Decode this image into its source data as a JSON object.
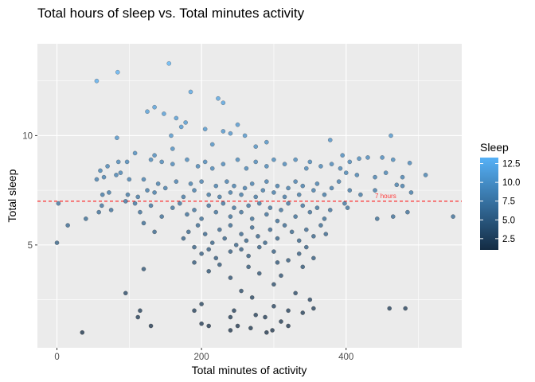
{
  "chart_data": {
    "type": "scatter",
    "title": "Total hours of sleep vs. Total minutes activity",
    "xlabel": "Total minutes of activity",
    "ylabel": "Total sleep",
    "xlim": [
      -27,
      560
    ],
    "ylim": [
      0.3,
      14.2
    ],
    "x_ticks": [
      0,
      200,
      400
    ],
    "y_ticks": [
      5,
      10
    ],
    "grid": true,
    "panel_color": "#ebebeb",
    "reference_line": {
      "y": 7,
      "label": "7 hours",
      "color": "#ff0000",
      "style": "dashed"
    },
    "legend": {
      "title": "Sleep",
      "placement": "right",
      "ticks": [
        2.5,
        5.0,
        7.5,
        10.0,
        12.5
      ],
      "tick_labels": [
        "2.5",
        "5.0",
        "7.5",
        "10.0",
        "12.5"
      ],
      "range": [
        1,
        13.3
      ],
      "low_color": "#132b43",
      "high_color": "#56b1f7"
    },
    "points": [
      [
        155,
        13.3
      ],
      [
        84,
        12.9
      ],
      [
        55,
        12.5
      ],
      [
        185,
        12.0
      ],
      [
        223,
        11.7
      ],
      [
        230,
        11.5
      ],
      [
        135,
        11.3
      ],
      [
        125,
        11.1
      ],
      [
        148,
        11.0
      ],
      [
        165,
        10.8
      ],
      [
        178,
        10.6
      ],
      [
        250,
        10.5
      ],
      [
        172,
        10.4
      ],
      [
        158,
        10.0
      ],
      [
        205,
        10.3
      ],
      [
        240,
        10.1
      ],
      [
        230,
        10.2
      ],
      [
        260,
        10.0
      ],
      [
        462,
        10.0
      ],
      [
        83,
        9.9
      ],
      [
        378,
        9.8
      ],
      [
        290,
        9.7
      ],
      [
        215,
        9.6
      ],
      [
        275,
        9.5
      ],
      [
        160,
        9.4
      ],
      [
        108,
        9.2
      ],
      [
        135,
        9.1
      ],
      [
        395,
        9.1
      ],
      [
        430,
        9.0
      ],
      [
        418,
        8.95
      ],
      [
        450,
        9.0
      ],
      [
        488,
        8.75
      ],
      [
        465,
        8.9
      ],
      [
        405,
        8.8
      ],
      [
        85,
        8.8
      ],
      [
        97,
        8.8
      ],
      [
        60,
        8.4
      ],
      [
        70,
        8.6
      ],
      [
        88,
        8.3
      ],
      [
        82,
        8.2
      ],
      [
        65,
        8.1
      ],
      [
        55,
        8.0
      ],
      [
        100,
        8.0
      ],
      [
        120,
        8.0
      ],
      [
        130,
        8.9
      ],
      [
        145,
        8.8
      ],
      [
        160,
        8.7
      ],
      [
        180,
        8.9
      ],
      [
        195,
        8.6
      ],
      [
        205,
        8.8
      ],
      [
        215,
        8.5
      ],
      [
        230,
        8.7
      ],
      [
        250,
        8.9
      ],
      [
        262,
        8.5
      ],
      [
        275,
        8.8
      ],
      [
        290,
        8.6
      ],
      [
        300,
        8.9
      ],
      [
        315,
        8.7
      ],
      [
        330,
        8.9
      ],
      [
        345,
        8.5
      ],
      [
        350,
        8.8
      ],
      [
        365,
        8.6
      ],
      [
        380,
        8.7
      ],
      [
        392,
        8.5
      ],
      [
        400,
        8.3
      ],
      [
        415,
        8.2
      ],
      [
        440,
        8.1
      ],
      [
        455,
        8.3
      ],
      [
        478,
        8.1
      ],
      [
        510,
        8.2
      ],
      [
        63,
        7.3
      ],
      [
        72,
        7.4
      ],
      [
        98,
        7.3
      ],
      [
        112,
        7.2
      ],
      [
        125,
        7.5
      ],
      [
        135,
        7.4
      ],
      [
        140,
        7.8
      ],
      [
        150,
        7.6
      ],
      [
        165,
        7.9
      ],
      [
        175,
        7.2
      ],
      [
        185,
        7.8
      ],
      [
        190,
        7.5
      ],
      [
        200,
        7.9
      ],
      [
        210,
        7.3
      ],
      [
        220,
        7.7
      ],
      [
        225,
        7.2
      ],
      [
        235,
        7.9
      ],
      [
        240,
        7.4
      ],
      [
        245,
        7.7
      ],
      [
        255,
        7.3
      ],
      [
        260,
        7.6
      ],
      [
        270,
        7.8
      ],
      [
        275,
        7.2
      ],
      [
        285,
        7.5
      ],
      [
        290,
        7.9
      ],
      [
        300,
        7.4
      ],
      [
        305,
        7.7
      ],
      [
        315,
        7.2
      ],
      [
        320,
        7.6
      ],
      [
        330,
        7.9
      ],
      [
        335,
        7.3
      ],
      [
        340,
        7.7
      ],
      [
        355,
        7.5
      ],
      [
        360,
        7.8
      ],
      [
        370,
        7.3
      ],
      [
        380,
        7.6
      ],
      [
        390,
        7.9
      ],
      [
        405,
        7.5
      ],
      [
        420,
        7.3
      ],
      [
        440,
        7.5
      ],
      [
        470,
        7.75
      ],
      [
        478,
        7.7
      ],
      [
        490,
        7.4
      ],
      [
        2,
        6.9
      ],
      [
        62,
        6.8
      ],
      [
        75,
        6.6
      ],
      [
        95,
        7.0
      ],
      [
        108,
        6.9
      ],
      [
        115,
        6.5
      ],
      [
        130,
        6.8
      ],
      [
        145,
        6.3
      ],
      [
        160,
        6.7
      ],
      [
        170,
        6.9
      ],
      [
        180,
        6.4
      ],
      [
        190,
        6.6
      ],
      [
        200,
        6.2
      ],
      [
        210,
        6.8
      ],
      [
        220,
        6.5
      ],
      [
        230,
        6.9
      ],
      [
        240,
        6.3
      ],
      [
        245,
        6.7
      ],
      [
        255,
        6.5
      ],
      [
        265,
        6.8
      ],
      [
        270,
        6.2
      ],
      [
        280,
        6.9
      ],
      [
        290,
        6.4
      ],
      [
        295,
        6.7
      ],
      [
        305,
        6.1
      ],
      [
        310,
        6.6
      ],
      [
        320,
        6.9
      ],
      [
        330,
        6.3
      ],
      [
        340,
        6.8
      ],
      [
        350,
        6.5
      ],
      [
        360,
        6.7
      ],
      [
        370,
        6.2
      ],
      [
        378,
        6.6
      ],
      [
        398,
        6.9
      ],
      [
        402,
        6.7
      ],
      [
        443,
        6.2
      ],
      [
        465,
        6.3
      ],
      [
        485,
        6.5
      ],
      [
        548,
        6.3
      ],
      [
        15,
        5.9
      ],
      [
        40,
        6.2
      ],
      [
        58,
        6.5
      ],
      [
        120,
        6.0
      ],
      [
        135,
        5.6
      ],
      [
        175,
        5.3
      ],
      [
        182,
        5.6
      ],
      [
        195,
        5.9
      ],
      [
        205,
        5.5
      ],
      [
        215,
        5.1
      ],
      [
        225,
        5.7
      ],
      [
        232,
        5.3
      ],
      [
        240,
        5.9
      ],
      [
        248,
        5.0
      ],
      [
        255,
        5.5
      ],
      [
        262,
        5.2
      ],
      [
        270,
        5.8
      ],
      [
        278,
        5.4
      ],
      [
        288,
        5.1
      ],
      [
        295,
        5.7
      ],
      [
        305,
        5.3
      ],
      [
        315,
        5.9
      ],
      [
        325,
        5.6
      ],
      [
        335,
        5.2
      ],
      [
        345,
        5.7
      ],
      [
        355,
        5.4
      ],
      [
        365,
        5.9
      ],
      [
        372,
        5.5
      ],
      [
        0,
        5.1
      ],
      [
        190,
        4.9
      ],
      [
        200,
        4.6
      ],
      [
        210,
        4.8
      ],
      [
        220,
        4.4
      ],
      [
        240,
        4.7
      ],
      [
        255,
        4.8
      ],
      [
        265,
        4.5
      ],
      [
        280,
        4.9
      ],
      [
        300,
        4.7
      ],
      [
        320,
        4.3
      ],
      [
        335,
        4.6
      ],
      [
        345,
        4.9
      ],
      [
        355,
        4.4
      ],
      [
        190,
        4.2
      ],
      [
        225,
        4.1
      ],
      [
        265,
        4.0
      ],
      [
        305,
        4.2
      ],
      [
        340,
        4.0
      ],
      [
        120,
        3.9
      ],
      [
        210,
        3.8
      ],
      [
        280,
        3.7
      ],
      [
        310,
        3.6
      ],
      [
        240,
        3.5
      ],
      [
        300,
        3.2
      ],
      [
        255,
        2.9
      ],
      [
        330,
        2.8
      ],
      [
        95,
        2.8
      ],
      [
        300,
        2.2
      ],
      [
        350,
        2.5
      ],
      [
        270,
        2.6
      ],
      [
        200,
        2.3
      ],
      [
        115,
        2.0
      ],
      [
        190,
        2.0
      ],
      [
        245,
        2.0
      ],
      [
        275,
        1.8
      ],
      [
        320,
        2.0
      ],
      [
        340,
        1.9
      ],
      [
        355,
        2.1
      ],
      [
        460,
        2.1
      ],
      [
        482,
        2.1
      ],
      [
        112,
        1.7
      ],
      [
        240,
        1.7
      ],
      [
        288,
        1.7
      ],
      [
        310,
        1.5
      ],
      [
        250,
        1.3
      ],
      [
        320,
        1.3
      ],
      [
        130,
        1.3
      ],
      [
        210,
        1.3
      ],
      [
        200,
        1.4
      ],
      [
        240,
        1.1
      ],
      [
        268,
        1.2
      ],
      [
        298,
        1.1
      ],
      [
        35,
        1.0
      ],
      [
        290,
        1.0
      ]
    ]
  }
}
